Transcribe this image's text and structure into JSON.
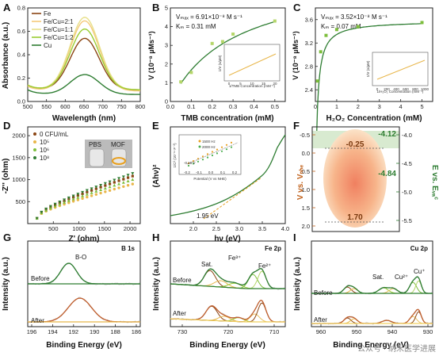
{
  "panels": {
    "A": {
      "label": "A"
    },
    "B": {
      "label": "B"
    },
    "C": {
      "label": "C"
    },
    "D": {
      "label": "D"
    },
    "E": {
      "label": "E"
    },
    "F": {
      "label": "F"
    },
    "G": {
      "label": "G"
    },
    "H": {
      "label": "H"
    },
    "I": {
      "label": "I"
    }
  },
  "watermark": "公众号 · 纳米医学进展",
  "chart_data": [
    {
      "id": "A",
      "type": "line",
      "xlabel": "Wavelength (nm)",
      "ylabel": "Absorbance (a.u.)",
      "xlim": [
        500,
        800
      ],
      "ylim": [
        0,
        0.8
      ],
      "xticks": [
        "500",
        "550",
        "600",
        "650",
        "700",
        "750",
        "800"
      ],
      "yticks": [
        "0.0",
        "0.2",
        "0.4",
        "0.6",
        "0.8"
      ],
      "series": [
        {
          "name": "Fe",
          "color": "#8B4513",
          "peak": 0.54,
          "base": 0.1
        },
        {
          "name": "Fe/Cu=2:1",
          "color": "#F5C97A",
          "peak": 0.69,
          "base": 0.09
        },
        {
          "name": "Fe/Cu=1:1",
          "color": "#E8E08A",
          "peak": 0.72,
          "base": 0.1
        },
        {
          "name": "Fe/Cu=1:2",
          "color": "#9ACD32",
          "peak": 0.62,
          "base": 0.1
        },
        {
          "name": "Cu",
          "color": "#2E7D32",
          "peak": 0.23,
          "base": 0.06
        }
      ]
    },
    {
      "id": "B",
      "type": "scatter",
      "xlabel": "TMB concentration (mM)",
      "ylabel": "V (10⁻⁸ µMs⁻¹)",
      "xlim": [
        0,
        0.55
      ],
      "ylim": [
        0,
        5
      ],
      "xticks": [
        "0.0",
        "0.1",
        "0.2",
        "0.3",
        "0.4",
        "0.5"
      ],
      "yticks": [
        "0",
        "1",
        "2",
        "3",
        "4",
        "5"
      ],
      "points": [
        [
          0.05,
          1.05
        ],
        [
          0.1,
          1.55
        ],
        [
          0.2,
          3.1
        ],
        [
          0.25,
          3.2
        ],
        [
          0.3,
          3.6
        ],
        [
          0.5,
          4.3
        ]
      ],
      "vmax": "Vₘₐₓ = 6.91×10⁻⁸ M s⁻¹",
      "km": "Kₘ = 0.31 mM",
      "inset": {
        "xlabel": "1/TMB Concentration (mM⁻¹)",
        "ylabel": "1/V (s/µM)",
        "xticks": [
          "0",
          "5",
          "10",
          "15",
          "20"
        ]
      }
    },
    {
      "id": "C",
      "type": "scatter",
      "xlabel": "H₂O₂ Concentration (mM)",
      "ylabel": "V (10⁻⁸ µMs⁻¹)",
      "xlim": [
        0,
        5.5
      ],
      "ylim": [
        2.2,
        3.8
      ],
      "xticks": [
        "0",
        "1",
        "2",
        "3",
        "4",
        "5"
      ],
      "yticks": [
        "2.4",
        "2.8",
        "3.2",
        "3.6"
      ],
      "points": [
        [
          0.1,
          2.55
        ],
        [
          0.25,
          3.05
        ],
        [
          0.5,
          3.33
        ],
        [
          1,
          3.43
        ],
        [
          2,
          3.48
        ],
        [
          5,
          3.55
        ]
      ],
      "vmax": "Vₘₐₓ = 3.52×10⁻⁸ M s⁻¹",
      "km": "Kₘ = 0.07 mM",
      "inset": {
        "xlabel": "1/H₂O₂ Concentration (mM⁻¹)",
        "ylabel": "1/V (s/µM)",
        "xticks": [
          "0",
          "200",
          "400",
          "600",
          "800",
          "1000"
        ]
      }
    },
    {
      "id": "D",
      "type": "scatter",
      "xlabel": "Z' (ohm)",
      "ylabel": "-Z'' (ohm)",
      "xlim": [
        0,
        2200
      ],
      "ylim": [
        0,
        2200
      ],
      "xticks": [
        "500",
        "1000",
        "1500",
        "2000"
      ],
      "yticks": [
        "500",
        "1000",
        "1500",
        "2000"
      ],
      "series": [
        {
          "name": "0 CFU/mL",
          "color": "#8B4513",
          "end": [
            2050,
            1080
          ]
        },
        {
          "name": "10⁵",
          "color": "#E8B64A",
          "end": [
            2050,
            900
          ]
        },
        {
          "name": "10⁶",
          "color": "#7DBE3C",
          "end": [
            2050,
            1000
          ]
        },
        {
          "name": "10⁸",
          "color": "#2E7D32",
          "end": [
            2050,
            1140
          ]
        }
      ],
      "photo_labels": [
        "PBS",
        "MOF"
      ]
    },
    {
      "id": "E",
      "type": "line",
      "xlabel": "hν (eV)",
      "ylabel": "(Ahν)²",
      "xlim": [
        1.5,
        4.0
      ],
      "xticks": [
        "2.0",
        "2.5",
        "3.0",
        "3.5",
        "4.0"
      ],
      "bandgap": "1.95 eV",
      "inset": {
        "xlabel": "Potential (V vs NHE)",
        "ylabel": "1/C² (10⁻¹¹ F⁻²)",
        "fb": "-0.15 V",
        "series": [
          "1500 Hz",
          "2000 Hz"
        ],
        "xticks": [
          "-0.2",
          "-0.1",
          "0.0",
          "0.1",
          "0.2"
        ]
      }
    },
    {
      "id": "F",
      "type": "diagram",
      "ylabel_left": "V vs. Vₙₕₑ",
      "ylabel_right": "E vs. Eᵥₐᶜ",
      "left_ticks": [
        "-0.5",
        "0.0",
        "0.5",
        "1.0",
        "1.5",
        "2.0"
      ],
      "right_ticks": [
        "-4.0",
        "-4.5",
        "-5.0",
        "-5.5"
      ],
      "cb": "-0.25",
      "vb": "1.70",
      "cb_vac": "-4.12",
      "vb_vac": "-4.84"
    },
    {
      "id": "G",
      "type": "line",
      "title": "B 1s",
      "peak": "B-O",
      "xlabel": "Binding Energy (eV)",
      "ylabel": "Intensity (a.u.)",
      "xticks": [
        "196",
        "194",
        "192",
        "190",
        "188",
        "186"
      ],
      "rows": [
        "Before",
        "After"
      ]
    },
    {
      "id": "H",
      "type": "line",
      "title": "Fe 2p",
      "xlabel": "Binding Energy (eV)",
      "ylabel": "Intensity (a.u.)",
      "xticks": [
        "730",
        "720",
        "710"
      ],
      "peaks": [
        "Sat.",
        "Fe³⁺",
        "Fe²⁺"
      ],
      "rows": [
        "Before",
        "After"
      ]
    },
    {
      "id": "I",
      "type": "line",
      "title": "Cu 2p",
      "xlabel": "Binding Energy (eV)",
      "ylabel": "Intensity (a.u.)",
      "xticks": [
        "960",
        "950",
        "940",
        "930"
      ],
      "peaks": [
        "Sat.",
        "Cu²⁺",
        "Cu⁺"
      ],
      "rows": [
        "Before",
        "After"
      ]
    }
  ]
}
